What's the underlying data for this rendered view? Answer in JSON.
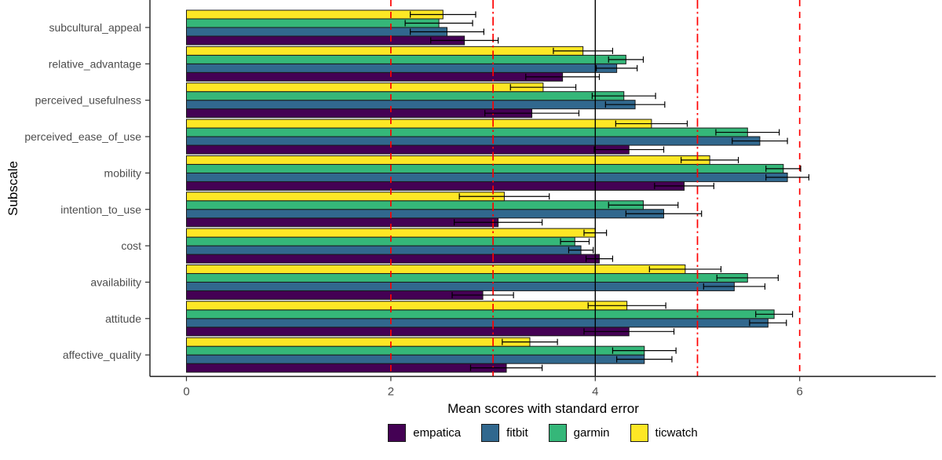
{
  "chart_data": {
    "type": "bar",
    "orientation": "horizontal",
    "title": "",
    "xlabel": "Mean scores with standard error",
    "ylabel": "Subscale",
    "x_ticks": [
      0,
      2,
      4,
      6
    ],
    "xlim": [
      -0.36,
      7.33
    ],
    "grid": false,
    "legend_position": "bottom",
    "categories_top_to_bottom": [
      "subcultural_appeal",
      "relative_advantage",
      "perceived_usefulness",
      "perceived_ease_of_use",
      "mobility",
      "intention_to_use",
      "cost",
      "availability",
      "attitude",
      "affective_quality"
    ],
    "bar_order_within_group_top_to_bottom": [
      "ticwatch",
      "garmin",
      "fitbit",
      "empatica"
    ],
    "series": [
      {
        "name": "empatica",
        "color": "#440154",
        "values": [
          2.72,
          3.68,
          3.38,
          4.33,
          4.87,
          3.05,
          4.04,
          2.9,
          4.33,
          3.13
        ],
        "std_errors": [
          0.33,
          0.36,
          0.46,
          0.34,
          0.29,
          0.43,
          0.13,
          0.3,
          0.44,
          0.35
        ]
      },
      {
        "name": "fitbit",
        "color": "#31688E",
        "values": [
          2.55,
          4.21,
          4.39,
          5.61,
          5.88,
          4.67,
          3.86,
          5.36,
          5.69,
          4.48
        ],
        "std_errors": [
          0.36,
          0.2,
          0.29,
          0.27,
          0.21,
          0.37,
          0.12,
          0.3,
          0.18,
          0.27
        ]
      },
      {
        "name": "garmin",
        "color": "#35B779",
        "values": [
          2.47,
          4.3,
          4.28,
          5.49,
          5.84,
          4.47,
          3.8,
          5.49,
          5.75,
          4.48
        ],
        "std_errors": [
          0.33,
          0.17,
          0.31,
          0.31,
          0.17,
          0.34,
          0.14,
          0.3,
          0.18,
          0.31
        ]
      },
      {
        "name": "ticwatch",
        "color": "#FDE725",
        "values": [
          2.51,
          3.88,
          3.49,
          4.55,
          5.12,
          3.11,
          4.0,
          4.88,
          4.31,
          3.36
        ],
        "std_errors": [
          0.32,
          0.29,
          0.32,
          0.35,
          0.28,
          0.44,
          0.11,
          0.35,
          0.38,
          0.27
        ]
      }
    ],
    "reference_lines": [
      {
        "x": 2,
        "color": "#FF0000",
        "style": "dashed"
      },
      {
        "x": 3,
        "color": "#FF0000",
        "style": "dashdot"
      },
      {
        "x": 4,
        "color": "#000000",
        "style": "solid"
      },
      {
        "x": 5,
        "color": "#FF0000",
        "style": "dashdot"
      },
      {
        "x": 6,
        "color": "#FF0000",
        "style": "dashed"
      }
    ],
    "error_bar_color": "#000000",
    "bar_outline_color": "#1a1a1a",
    "axis_line_color": "#1a1a1a"
  }
}
